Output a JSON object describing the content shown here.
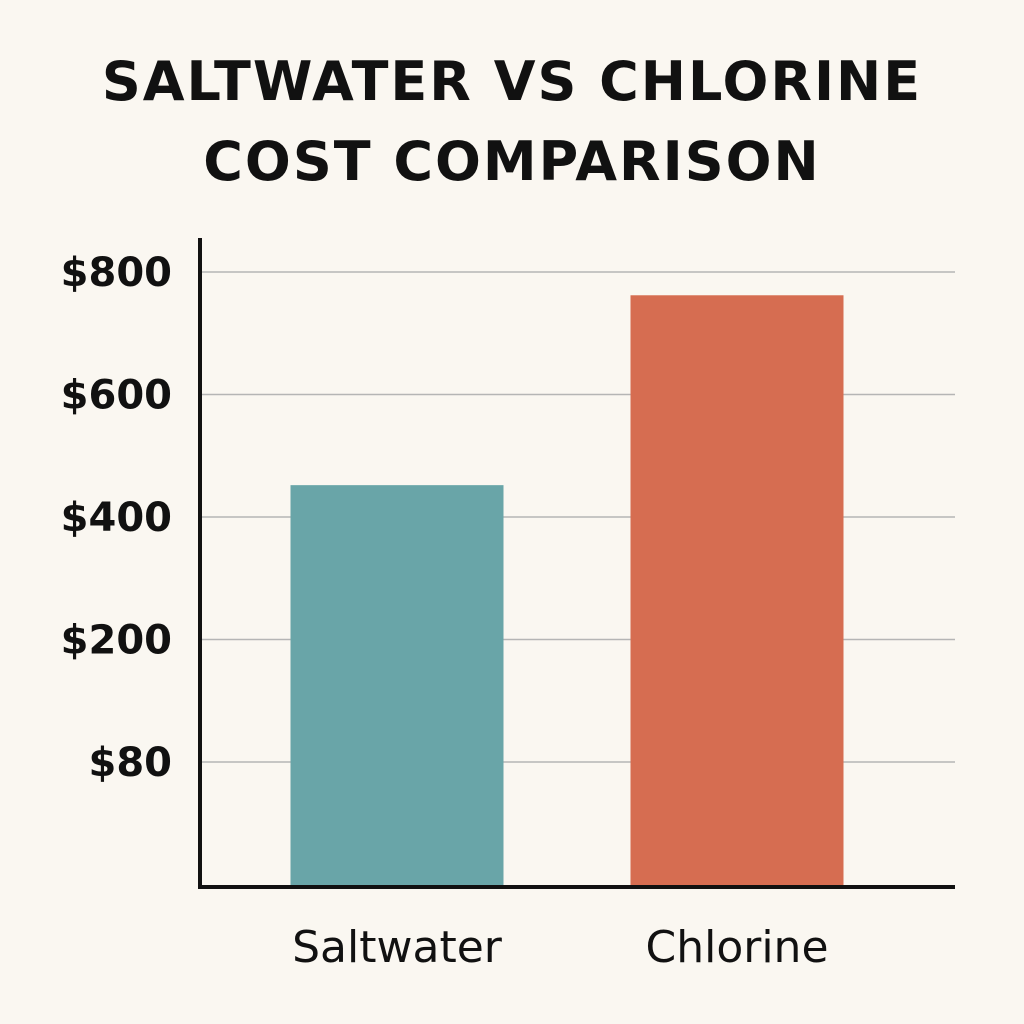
{
  "colors": {
    "background": "#faf7f1",
    "saltwater": "#69a5a8",
    "chlorine": "#d66d51",
    "axis": "#111111",
    "grid": "#b5b5b5"
  },
  "chart_data": {
    "type": "bar",
    "title": "SALTWATER VS CHLORINE COST COMPARISON",
    "title_lines": [
      "SALTWATER VS CHLORINE",
      "COST COMPARISON"
    ],
    "xlabel": "",
    "ylabel": "",
    "categories": [
      "Saltwater",
      "Chlorine"
    ],
    "values": [
      452,
      762
    ],
    "bar_colors": [
      "#69a5a8",
      "#d66d51"
    ],
    "y_ticks": [
      {
        "label": "$800",
        "value": 800
      },
      {
        "label": "$600",
        "value": 600
      },
      {
        "label": "$400",
        "value": 400
      },
      {
        "label": "$200",
        "value": 200
      },
      {
        "label": "$80",
        "value": 80
      }
    ],
    "ylim": [
      -160,
      860
    ],
    "grid": true,
    "legend": "none"
  }
}
